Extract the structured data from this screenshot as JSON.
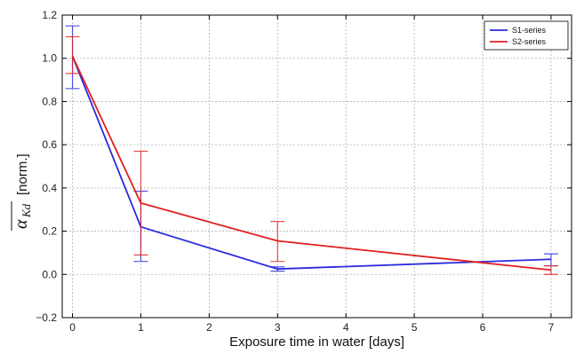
{
  "chart_data": {
    "type": "line",
    "title": "",
    "xlabel": "Exposure time in water [days]",
    "ylabel": {
      "symbol": "α",
      "subscript": "Kd",
      "unit": "[norm.]"
    },
    "x_ticks": [
      0,
      1,
      2,
      3,
      4,
      5,
      6,
      7
    ],
    "y_ticks": [
      "−0.2",
      "0.0",
      "0.2",
      "0.4",
      "0.6",
      "0.8",
      "1.0",
      "1.2"
    ],
    "xlim": [
      -0.15,
      7.3
    ],
    "ylim": [
      -0.2,
      1.2
    ],
    "grid": true,
    "legend_position": "top-right",
    "x": [
      0,
      1,
      3,
      7
    ],
    "series": [
      {
        "name": "S1-series",
        "color": "#2a2ae0",
        "values": [
          1.01,
          0.22,
          0.025,
          0.07
        ],
        "errors": [
          [
            0.86,
            1.15
          ],
          [
            0.06,
            0.385
          ],
          [
            0.015,
            0.035
          ],
          [
            0.04,
            0.095
          ]
        ]
      },
      {
        "name": "S2-series",
        "color": "#e02020",
        "values": [
          1.01,
          0.33,
          0.155,
          0.02
        ],
        "errors": [
          [
            0.93,
            1.1
          ],
          [
            0.09,
            0.57
          ],
          [
            0.06,
            0.245
          ],
          [
            0.0,
            0.04
          ]
        ]
      }
    ]
  }
}
